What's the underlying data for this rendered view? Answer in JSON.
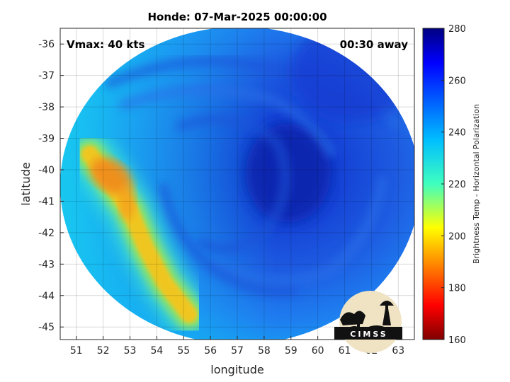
{
  "chart_data": {
    "type": "heatmap",
    "title": "Honde: 07-Mar-2025 00:00:00",
    "xlabel": "longitude",
    "ylabel": "latitude",
    "xlim": [
      50.4,
      63.6
    ],
    "ylim": [
      -45.4,
      -35.5
    ],
    "xticks": [
      "51",
      "52",
      "53",
      "54",
      "55",
      "56",
      "57",
      "58",
      "59",
      "60",
      "61",
      "62",
      "63"
    ],
    "yticks": [
      "-36",
      "-37",
      "-38",
      "-39",
      "-40",
      "-41",
      "-42",
      "-43",
      "-44",
      "-45"
    ],
    "grid": true,
    "swath": {
      "center_lon": 57.1,
      "center_lat": -40.5,
      "radius_lon": 6.7,
      "radius_lat": 5.05
    },
    "storm_center": {
      "lon": 58.9,
      "lat": -40.1
    },
    "warm_band": [
      {
        "lon": 51.5,
        "lat": -39.5,
        "value": 205
      },
      {
        "lon": 52.2,
        "lat": -40.3,
        "value": 200
      },
      {
        "lon": 53.0,
        "lat": -41.3,
        "value": 207
      },
      {
        "lon": 53.6,
        "lat": -42.5,
        "value": 210
      },
      {
        "lon": 54.3,
        "lat": -43.6,
        "value": 212
      },
      {
        "lon": 55.2,
        "lat": -44.6,
        "value": 213
      }
    ],
    "annotations": {
      "left": "Vmax: 40 kts",
      "right": "00:30 away"
    },
    "colorbar": {
      "label": "Brightness Temp - Horizontal Polarization",
      "min": 160,
      "max": 280,
      "ticks": [
        "280",
        "260",
        "240",
        "220",
        "200",
        "180",
        "160"
      ],
      "colormap": "jet"
    },
    "logo": "CIMSS"
  },
  "colors": {
    "background_ocean": "#1f5fe0",
    "core": "#0a2cb8",
    "warm_band": "#f5c51d",
    "warmest": "#f08a1c"
  }
}
